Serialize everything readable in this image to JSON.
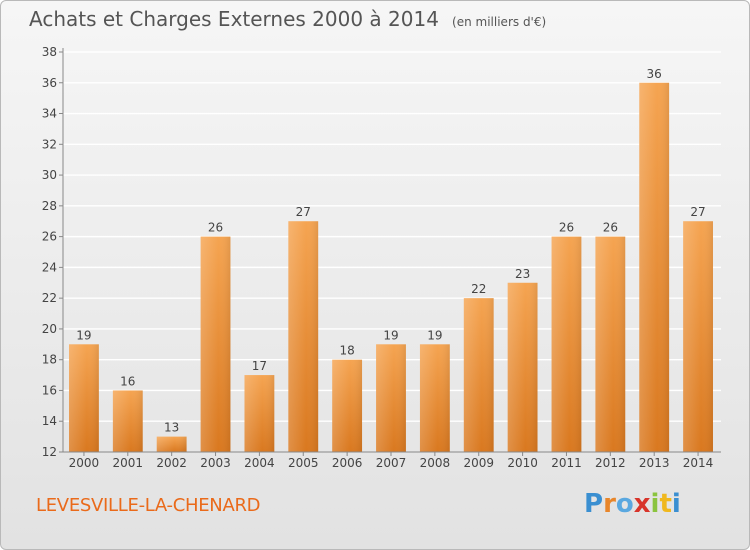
{
  "title": "Achats et Charges Externes 2000 à 2014",
  "unit_note": "(en milliers d'€)",
  "commune": "LEVESVILLE-LA-CHENARD",
  "logo": {
    "text": "Proxiti",
    "letter_colors": [
      "#3a8fd1",
      "#e8862a",
      "#5aa8e0",
      "#d8342a",
      "#8bc43f",
      "#f0b81e",
      "#3a8fd1"
    ]
  },
  "colors": {
    "bar_top": "#f5a451",
    "bar_bottom": "#d9781f",
    "axis": "#888888",
    "grid": "#ffffff"
  },
  "chart_data": {
    "type": "bar",
    "categories": [
      "2000",
      "2001",
      "2002",
      "2003",
      "2004",
      "2005",
      "2006",
      "2007",
      "2008",
      "2009",
      "2010",
      "2011",
      "2012",
      "2013",
      "2014"
    ],
    "values": [
      19,
      16,
      13,
      26,
      17,
      27,
      18,
      19,
      19,
      22,
      23,
      26,
      26,
      36,
      27
    ],
    "ylim": [
      12,
      38
    ],
    "yticks": [
      12,
      14,
      16,
      18,
      20,
      22,
      24,
      26,
      28,
      30,
      32,
      34,
      36,
      38
    ],
    "grid": true,
    "data_labels": true
  }
}
